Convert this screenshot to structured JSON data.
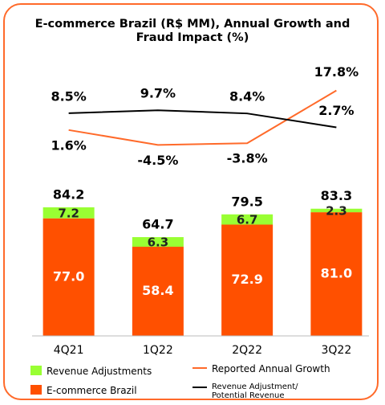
{
  "chart_data": {
    "type": "bar",
    "title": "E-commerce Brazil (R$ MM), Annual Growth and Fraud Impact (%)",
    "categories": [
      "4Q21",
      "1Q22",
      "2Q22",
      "3Q22"
    ],
    "stacked": true,
    "ylim": [
      0,
      100
    ],
    "y2lim": [
      -10,
      20
    ],
    "series": [
      {
        "name": "E-commerce Brazil",
        "color": "#ff5000",
        "values": [
          77.0,
          58.4,
          72.9,
          81.0
        ],
        "value_labels": [
          "77.0",
          "58.4",
          "72.9",
          "81.0"
        ]
      },
      {
        "name": "Revenue Adjustments",
        "color": "#99ff33",
        "values": [
          7.2,
          6.3,
          6.7,
          2.3
        ],
        "value_labels": [
          "7.2",
          "6.3",
          "6.7",
          "2.3"
        ]
      }
    ],
    "totals": [
      84.2,
      64.7,
      79.5,
      83.3
    ],
    "lines": [
      {
        "name": "Reported Annual Growth",
        "color": "#ff6a2a",
        "axis": "y2",
        "values": [
          1.6,
          -4.5,
          -3.8,
          17.8
        ],
        "value_labels": [
          "1.6%",
          "-4.5%",
          "-3.8%",
          "17.8%"
        ]
      },
      {
        "name": "Revenue Adjustment/ Potential Revenue",
        "color": "#000000",
        "axis": "y2",
        "values": [
          8.5,
          9.7,
          8.4,
          2.7
        ],
        "value_labels": [
          "8.5%",
          "9.7%",
          "8.4%",
          "2.7%"
        ]
      }
    ]
  }
}
